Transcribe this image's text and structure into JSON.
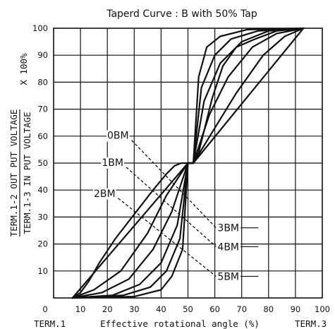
{
  "chart_data": {
    "type": "line",
    "title": "Taperd Curve : B with 50% Tap",
    "xlabel": "Effective rotational angle (%)",
    "xlabel_left": "TERM.1",
    "xlabel_right": "TERM.3",
    "ylabel_top": "TERM.1-2 OUT PUT VOLTAGE",
    "ylabel_bottom": "TERM.1-3 IN PUT VOLTAGE",
    "ylabel_suffix": "X 100%",
    "xlim": [
      0,
      100
    ],
    "ylim": [
      0,
      100
    ],
    "xticks": [
      "0",
      "10",
      "20",
      "30",
      "40",
      "50",
      "60",
      "70",
      "80",
      "90",
      "100"
    ],
    "yticks": [
      "10",
      "20",
      "30",
      "40",
      "50",
      "60",
      "70",
      "80",
      "90",
      "100"
    ],
    "grid": true,
    "series": [
      {
        "name": "0BM",
        "x": [
          7,
          50,
          52,
          93
        ],
        "y": [
          0,
          50,
          50,
          100
        ]
      },
      {
        "name": "1BM",
        "x": [
          7,
          15,
          25,
          35,
          42,
          50,
          52,
          60,
          68,
          78,
          86,
          93
        ],
        "y": [
          0,
          3,
          10,
          24,
          38,
          50,
          50,
          63,
          76,
          90,
          97,
          100
        ]
      },
      {
        "name": "2BM",
        "x": [
          7,
          18,
          28,
          37,
          44,
          50,
          52,
          58,
          65,
          74,
          83,
          93
        ],
        "y": [
          0,
          2,
          7,
          18,
          32,
          50,
          50,
          68,
          82,
          93,
          98,
          100
        ]
      },
      {
        "name": "3BM",
        "x": [
          7,
          22,
          32,
          40,
          46,
          50,
          52,
          56,
          62,
          70,
          80,
          93
        ],
        "y": [
          0,
          1,
          5,
          13,
          27,
          50,
          50,
          73,
          87,
          95,
          99,
          100
        ]
      },
      {
        "name": "4BM",
        "x": [
          7,
          26,
          36,
          42,
          47,
          50,
          52,
          55,
          60,
          66,
          76,
          93
        ],
        "y": [
          0,
          1,
          4,
          10,
          22,
          50,
          50,
          78,
          90,
          96,
          99,
          100
        ]
      },
      {
        "name": "5BM",
        "x": [
          7,
          30,
          40,
          44,
          48,
          50,
          52,
          54,
          57,
          62,
          72,
          93
        ],
        "y": [
          0,
          0.5,
          3,
          8,
          18,
          50,
          50,
          82,
          93,
          97,
          99.5,
          100
        ]
      },
      {
        "name": "",
        "x": [
          7,
          10,
          13,
          17,
          23,
          30,
          37,
          42,
          45,
          47.5,
          49,
          50,
          52,
          54,
          56,
          59,
          63,
          68,
          75,
          83,
          88,
          93
        ],
        "y": [
          0,
          2,
          6,
          13,
          22,
          31,
          40,
          46,
          49,
          50,
          50,
          50,
          50,
          54,
          62,
          74,
          86,
          93,
          96,
          99,
          99.5,
          100
        ]
      }
    ],
    "annotations": {
      "left": [
        {
          "label": "0BM",
          "x": 28.5,
          "y": 59
        },
        {
          "label": "1BM",
          "x": 26.5,
          "y": 49
        },
        {
          "label": "2BM",
          "x": 23.5,
          "y": 37.5
        }
      ],
      "right": [
        {
          "label": "3BM",
          "x": 61,
          "y": 26
        },
        {
          "label": "4BM",
          "x": 61,
          "y": 19
        },
        {
          "label": "5BM",
          "x": 61,
          "y": 8
        }
      ]
    }
  }
}
